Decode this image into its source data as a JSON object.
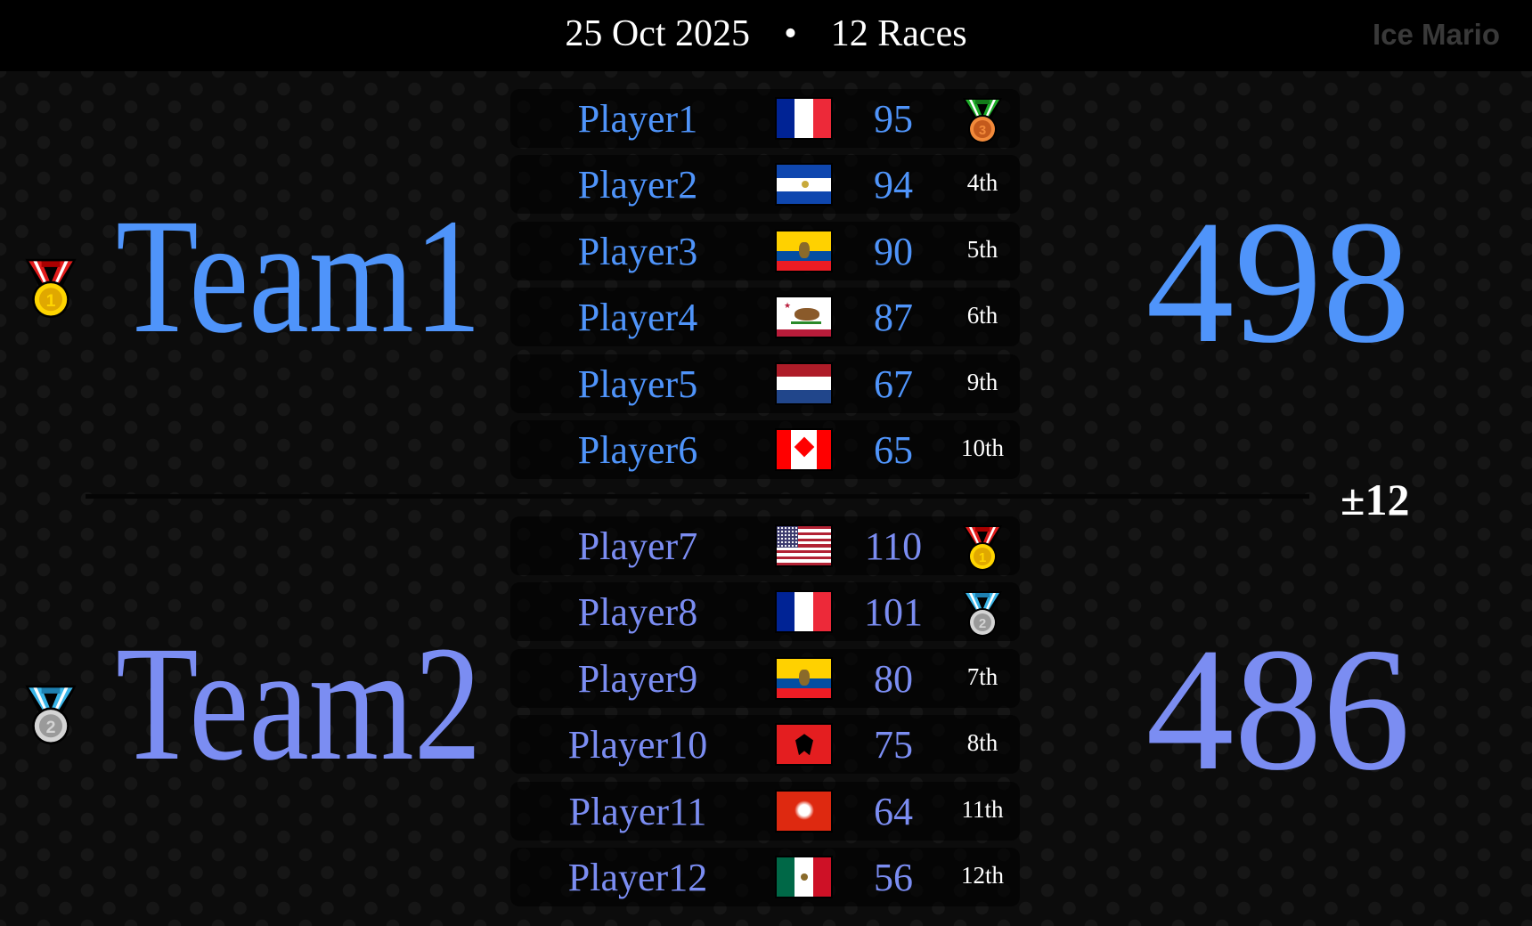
{
  "header": {
    "date": "25 Oct 2025",
    "separator": "•",
    "races": "12 Races",
    "brand": "Ice Mario"
  },
  "colors": {
    "team1": "#4f94fa",
    "team2": "#7b8df2"
  },
  "difference": "±12",
  "teams": [
    {
      "name": "Team1",
      "score": "498",
      "placement_medal": "gold-medal",
      "players": [
        {
          "name": "Player1",
          "flag": "france",
          "score": "95",
          "rank": "",
          "medal": "bronze-medal"
        },
        {
          "name": "Player2",
          "flag": "el-salvador",
          "score": "94",
          "rank": "4th",
          "medal": ""
        },
        {
          "name": "Player3",
          "flag": "ecuador",
          "score": "90",
          "rank": "5th",
          "medal": ""
        },
        {
          "name": "Player4",
          "flag": "california",
          "score": "87",
          "rank": "6th",
          "medal": ""
        },
        {
          "name": "Player5",
          "flag": "netherlands",
          "score": "67",
          "rank": "9th",
          "medal": ""
        },
        {
          "name": "Player6",
          "flag": "canada",
          "score": "65",
          "rank": "10th",
          "medal": ""
        }
      ]
    },
    {
      "name": "Team2",
      "score": "486",
      "placement_medal": "silver-medal",
      "players": [
        {
          "name": "Player7",
          "flag": "united-states",
          "score": "110",
          "rank": "",
          "medal": "gold-medal"
        },
        {
          "name": "Player8",
          "flag": "france",
          "score": "101",
          "rank": "",
          "medal": "silver-medal"
        },
        {
          "name": "Player9",
          "flag": "ecuador",
          "score": "80",
          "rank": "7th",
          "medal": ""
        },
        {
          "name": "Player10",
          "flag": "albania",
          "score": "75",
          "rank": "8th",
          "medal": ""
        },
        {
          "name": "Player11",
          "flag": "hong-kong",
          "score": "64",
          "rank": "11th",
          "medal": ""
        },
        {
          "name": "Player12",
          "flag": "mexico",
          "score": "56",
          "rank": "12th",
          "medal": ""
        }
      ]
    }
  ]
}
